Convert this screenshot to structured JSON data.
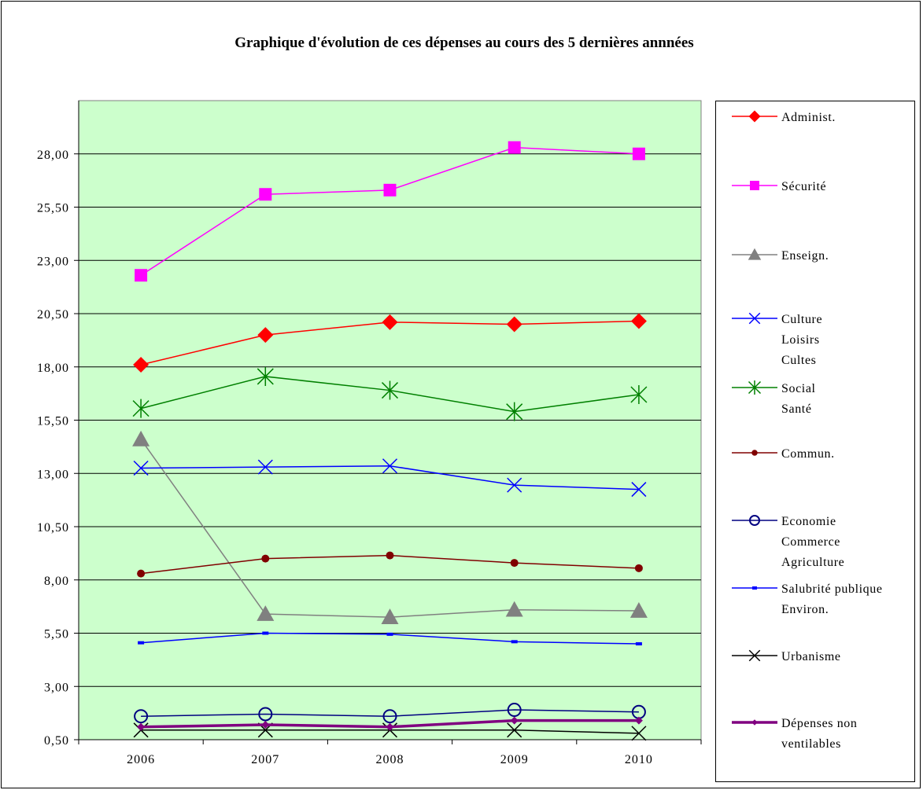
{
  "chart_data": {
    "type": "line",
    "title": "Graphique d'évolution de ces dépenses au cours des 5 dernières annnées",
    "xlabel": "",
    "ylabel": "",
    "x": [
      "2006",
      "2007",
      "2008",
      "2009",
      "2010"
    ],
    "ylim": [
      0.5,
      30.5
    ],
    "yticks": [
      "0,50",
      "3,00",
      "5,50",
      "8,00",
      "10,50",
      "13,00",
      "15,50",
      "18,00",
      "20,50",
      "23,00",
      "25,50",
      "28,00"
    ],
    "grid": true,
    "plot_background": "#ccffcc",
    "legend_position": "right",
    "series": [
      {
        "name": "Administ.",
        "label_lines": [
          "Administ."
        ],
        "color": "#ff0000",
        "marker": "diamond",
        "values": [
          18.1,
          19.5,
          20.1,
          20.0,
          20.15
        ]
      },
      {
        "name": "Sécurité",
        "label_lines": [
          "Sécurité"
        ],
        "color": "#ff00ff",
        "marker": "square",
        "values": [
          22.3,
          26.1,
          26.3,
          28.3,
          28.0
        ]
      },
      {
        "name": "Enseign.",
        "label_lines": [
          "Enseign."
        ],
        "color": "#808080",
        "marker": "triangle",
        "values": [
          14.6,
          6.4,
          6.25,
          6.6,
          6.55
        ]
      },
      {
        "name": "Culture Loisirs Cultes",
        "label_lines": [
          "Culture",
          "Loisirs",
          "Cultes"
        ],
        "color": "#0000ff",
        "marker": "x",
        "values": [
          13.25,
          13.3,
          13.35,
          12.45,
          12.25
        ]
      },
      {
        "name": "Social Santé",
        "label_lines": [
          "Social",
          "Santé"
        ],
        "color": "#008000",
        "marker": "star",
        "values": [
          16.05,
          17.55,
          16.9,
          15.9,
          16.7
        ]
      },
      {
        "name": "Commun.",
        "label_lines": [
          "Commun."
        ],
        "color": "#800000",
        "marker": "dot",
        "values": [
          8.3,
          9.0,
          9.15,
          8.8,
          8.55
        ]
      },
      {
        "name": "Economie Commerce Agriculture",
        "label_lines": [
          "Economie",
          "Commerce",
          "Agriculture"
        ],
        "color": "#000080",
        "marker": "circle",
        "values": [
          1.6,
          1.7,
          1.6,
          1.9,
          1.8
        ]
      },
      {
        "name": "Salubrité publique Environ.",
        "label_lines": [
          "Salubrité publique",
          "Environ."
        ],
        "color": "#0000ff",
        "marker": "dash",
        "values": [
          5.05,
          5.5,
          5.45,
          5.1,
          5.0
        ]
      },
      {
        "name": "Urbanisme",
        "label_lines": [
          "Urbanisme"
        ],
        "color": "#000000",
        "marker": "x",
        "values": [
          0.95,
          0.95,
          0.95,
          0.95,
          0.8
        ]
      },
      {
        "name": "Dépenses non ventilables",
        "label_lines": [
          "Dépenses non",
          "ventilables"
        ],
        "color": "#800080",
        "marker": "small-diamond",
        "values": [
          1.1,
          1.2,
          1.1,
          1.4,
          1.4
        ]
      }
    ]
  }
}
